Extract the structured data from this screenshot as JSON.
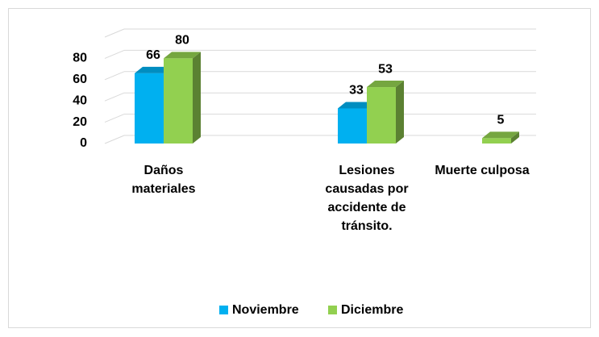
{
  "chart_data": {
    "type": "bar3d",
    "categories": [
      "Daños materiales",
      "Lesiones causadas por accidente de tránsito.",
      "Muerte culposa"
    ],
    "series": [
      {
        "name": "Noviembre",
        "color": "#00b0f0",
        "values": [
          66,
          33,
          null
        ]
      },
      {
        "name": "Diciembre",
        "color": "#92d050",
        "values": [
          80,
          53,
          5
        ]
      }
    ],
    "ylim": [
      0,
      100
    ],
    "yticks": [
      0,
      20,
      40,
      60,
      80
    ],
    "grid": true,
    "legend": "bottom"
  }
}
